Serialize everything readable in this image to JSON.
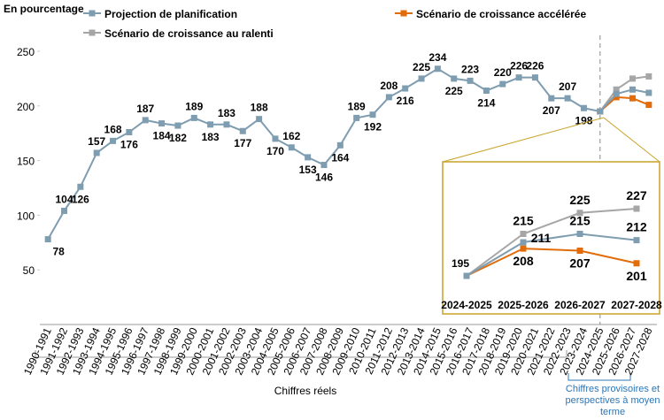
{
  "chart_data": {
    "type": "line",
    "y_axis_label": "En pourcentage",
    "categories": [
      "1990-1991",
      "1991-1992",
      "1992-1993",
      "1993-1994",
      "1994-1995",
      "1995-1996",
      "1996-1997",
      "1997-1998",
      "1998-1999",
      "1999-2000",
      "2000-2001",
      "2001-2002",
      "2002-2003",
      "2003-2004",
      "2004-2005",
      "2005-2006",
      "2006-2007",
      "2007-2008",
      "2008-2009",
      "2009-2010",
      "2010-2011",
      "2011-2012",
      "2012-2013",
      "2013-2014",
      "2014-2015",
      "2015-2016",
      "2016-2017",
      "2017-2018",
      "2018-2019",
      "2019-2020",
      "2020-2021",
      "2021-2022",
      "2022-2023",
      "2023-2024",
      "2024-2025",
      "2025-2026",
      "2026-2027",
      "2027-2028"
    ],
    "series": [
      {
        "name": "Projection de planification",
        "color": "#7f9db0",
        "values": [
          78,
          104,
          126,
          157,
          168,
          176,
          187,
          184,
          182,
          189,
          183,
          183,
          177,
          188,
          170,
          162,
          153,
          146,
          164,
          189,
          192,
          208,
          216,
          225,
          234,
          225,
          223,
          214,
          220,
          226,
          226,
          207,
          207,
          198,
          195,
          211,
          215,
          212
        ]
      },
      {
        "name": "Scénario de croissance accélérée",
        "color": "#e36c0a",
        "values": [
          null,
          null,
          null,
          null,
          null,
          null,
          null,
          null,
          null,
          null,
          null,
          null,
          null,
          null,
          null,
          null,
          null,
          null,
          null,
          null,
          null,
          null,
          null,
          null,
          null,
          null,
          null,
          null,
          null,
          null,
          null,
          null,
          null,
          null,
          195,
          208,
          207,
          201
        ]
      },
      {
        "name": "Scénario de croissance au ralenti",
        "color": "#a6a6a6",
        "values": [
          null,
          null,
          null,
          null,
          null,
          null,
          null,
          null,
          null,
          null,
          null,
          null,
          null,
          null,
          null,
          null,
          null,
          null,
          null,
          null,
          null,
          null,
          null,
          null,
          null,
          null,
          null,
          null,
          null,
          null,
          null,
          null,
          null,
          null,
          195,
          215,
          225,
          227
        ]
      }
    ],
    "ylim": [
      0,
      250
    ],
    "yticks": [
      50,
      100,
      150,
      200,
      250
    ],
    "grid": false,
    "legend": "top",
    "annotations": [
      "Chiffres réels",
      "Chiffres provisoires et perspectives à moyen terme"
    ]
  }
}
